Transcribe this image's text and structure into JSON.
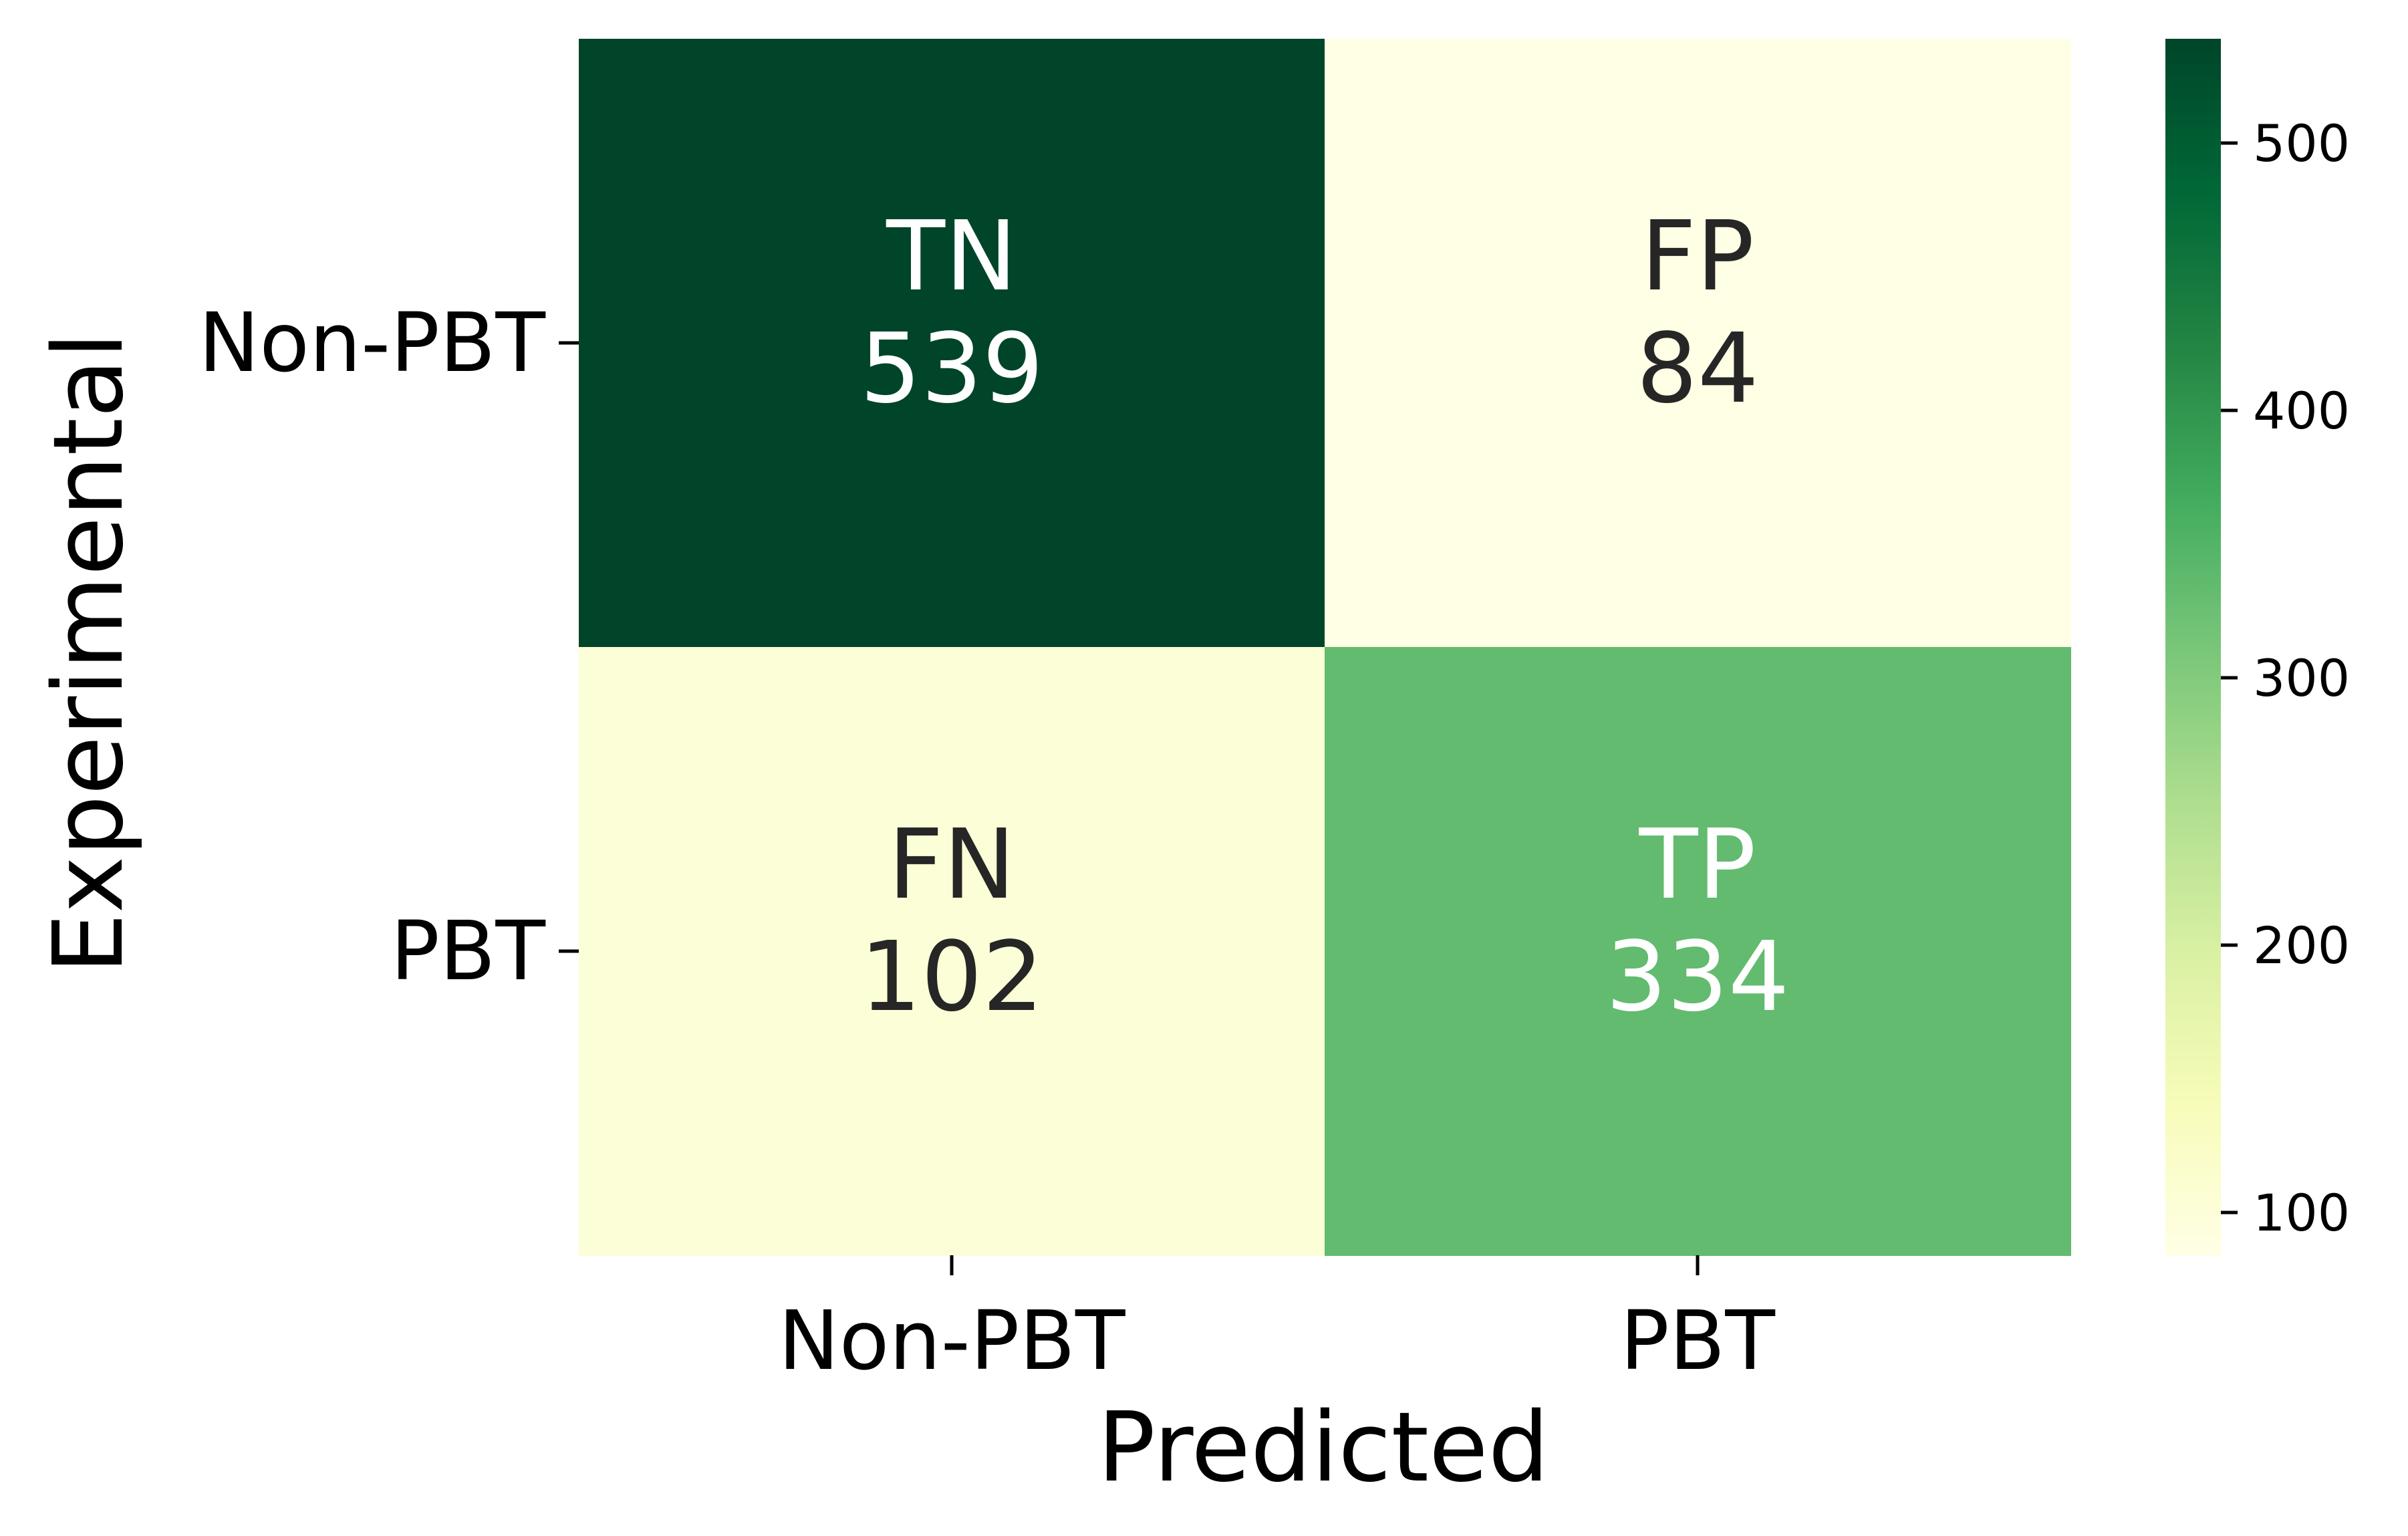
{
  "chart_data": {
    "type": "heatmap",
    "title": "",
    "xlabel": "Predicted",
    "ylabel": "Experimental",
    "x_categories": [
      "Non-PBT",
      "PBT"
    ],
    "y_categories": [
      "Non-PBT",
      "PBT"
    ],
    "values": [
      [
        539,
        84
      ],
      [
        102,
        334
      ]
    ],
    "cell_labels": [
      [
        "TN",
        "FP"
      ],
      [
        "FN",
        "TP"
      ]
    ],
    "colormap": "YlGn",
    "colorbar": {
      "range": [
        84,
        539
      ],
      "ticks": [
        100,
        200,
        300,
        400,
        500
      ],
      "tick_labels": [
        "100",
        "200",
        "300",
        "400",
        "500"
      ],
      "position": "right"
    },
    "grid": false,
    "colors": {
      "dark_text": "#262626",
      "light_text": "#ffffff"
    }
  }
}
